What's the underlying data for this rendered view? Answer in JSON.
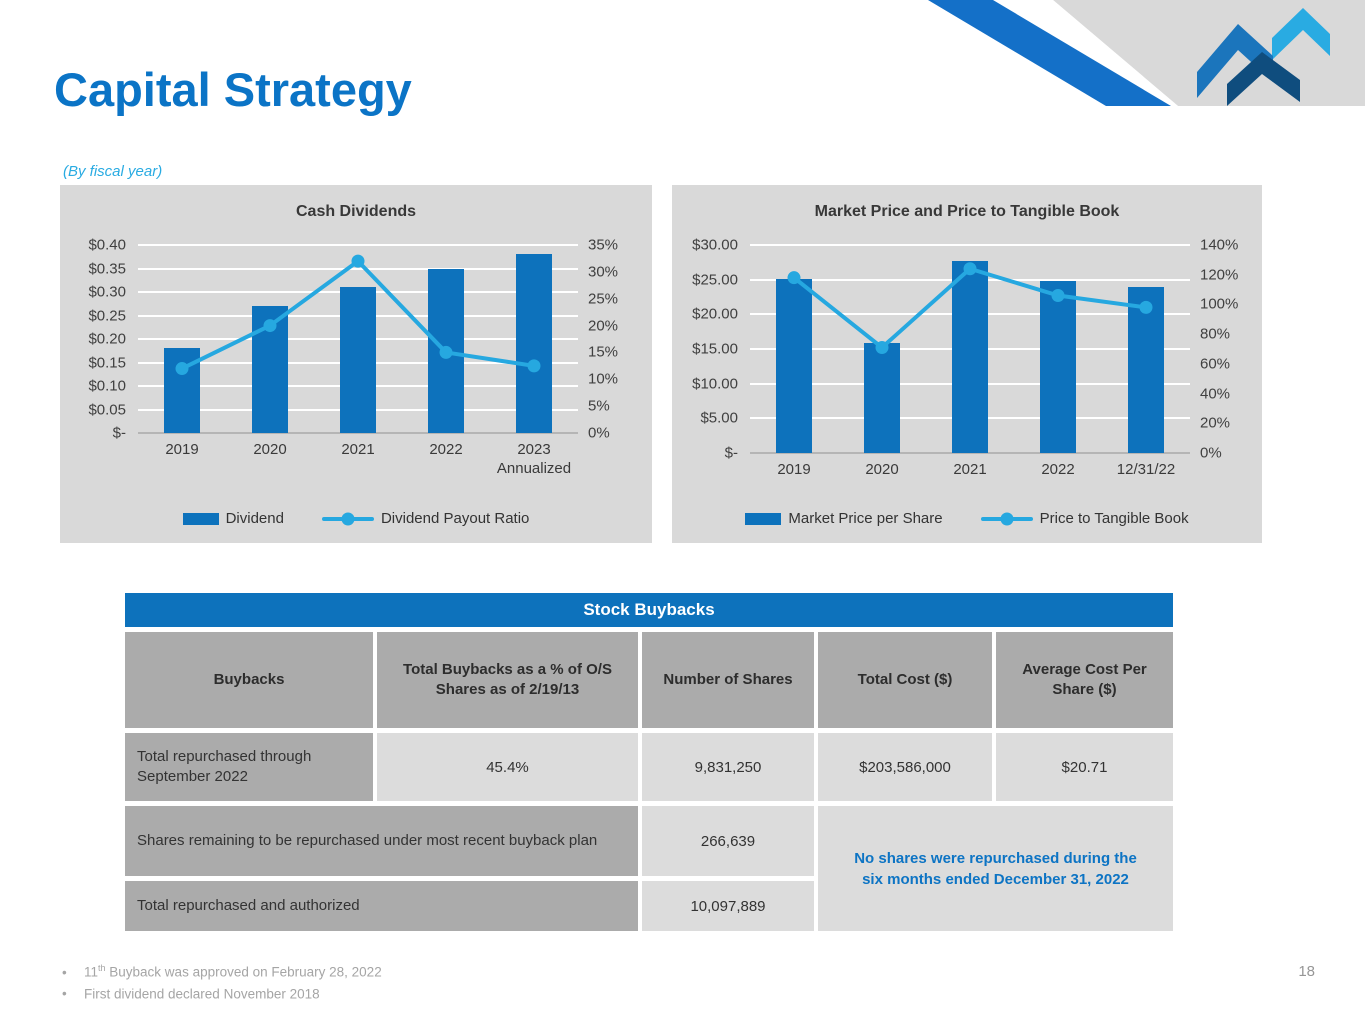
{
  "slide": {
    "title": "Capital Strategy",
    "subtitle": "(By fiscal year)",
    "page_number": "18",
    "footnotes": [
      {
        "pre": "11",
        "sup": "th",
        "post": " Buyback was approved on February 28, 2022"
      },
      {
        "pre": "",
        "sup": "",
        "post": "First dividend declared November 2018"
      }
    ]
  },
  "colors": {
    "title_blue": "#0b74c6",
    "subtitle_cyan": "#29abe2",
    "bar_blue": "#0d72bc",
    "line_blue": "#26a8e0",
    "panel_gray": "#d9d9d9",
    "table_header_blue": "#0d72bc",
    "cell_dark_gray": "#ababab",
    "cell_light_gray": "#dcdcdc",
    "note_blue": "#0d74c4",
    "stripe_blue": "#1470c8",
    "logo_light": "#29abe2",
    "logo_medium": "#1b75bc",
    "logo_dark": "#0f4d7e"
  },
  "chart_data": [
    {
      "type": "bar+line",
      "title": "Cash Dividends",
      "categories": [
        "2019",
        "2020",
        "2021",
        "2022",
        "2023\nAnnualized"
      ],
      "series": [
        {
          "name": "Dividend",
          "type": "bar",
          "axis": "left",
          "values": [
            0.18,
            0.27,
            0.31,
            0.35,
            0.38
          ]
        },
        {
          "name": "Dividend Payout Ratio",
          "type": "line",
          "axis": "right",
          "values": [
            12,
            20,
            32,
            15,
            12.5
          ]
        }
      ],
      "left_axis": {
        "ticks": [
          "$0.40",
          "$0.35",
          "$0.30",
          "$0.25",
          "$0.20",
          "$0.15",
          "$0.10",
          "$0.05",
          "$-"
        ],
        "min": 0,
        "max": 0.4
      },
      "right_axis": {
        "ticks": [
          "35%",
          "30%",
          "25%",
          "20%",
          "15%",
          "10%",
          "5%",
          "0%"
        ],
        "min": 0,
        "max": 35
      },
      "grid": true,
      "legend_position": "bottom"
    },
    {
      "type": "bar+line",
      "title": "Market Price and Price to Tangible Book",
      "categories": [
        "2019",
        "2020",
        "2021",
        "2022",
        "12/31/22"
      ],
      "series": [
        {
          "name": "Market Price per Share",
          "type": "bar",
          "axis": "left",
          "values": [
            25.1,
            15.8,
            27.7,
            24.8,
            24.0
          ]
        },
        {
          "name": "Price to Tangible Book",
          "type": "line",
          "axis": "right",
          "values": [
            118,
            71,
            124,
            106,
            98
          ]
        }
      ],
      "left_axis": {
        "ticks": [
          "$30.00",
          "$25.00",
          "$20.00",
          "$15.00",
          "$10.00",
          "$5.00",
          "$-"
        ],
        "min": 0,
        "max": 30
      },
      "right_axis": {
        "ticks": [
          "140%",
          "120%",
          "100%",
          "80%",
          "60%",
          "40%",
          "20%",
          "0%"
        ],
        "min": 0,
        "max": 140
      },
      "grid": true,
      "legend_position": "bottom"
    }
  ],
  "table": {
    "title": "Stock Buybacks",
    "headers": [
      "Buybacks",
      "Total Buybacks as a % of O/S Shares as of 2/19/13",
      "Number of Shares",
      "Total Cost ($)",
      "Average Cost Per Share ($)"
    ],
    "rows": [
      {
        "label": "Total repurchased through September 2022",
        "pct": "45.4%",
        "shares": "9,831,250",
        "cost": "$203,586,000",
        "avg": "$20.71"
      },
      {
        "label": "Shares remaining to be repurchased under most recent buyback plan",
        "shares": "266,639"
      },
      {
        "label": "Total repurchased and authorized",
        "shares": "10,097,889"
      }
    ],
    "merged_note": "No shares were repurchased during the six months ended December 31, 2022"
  }
}
